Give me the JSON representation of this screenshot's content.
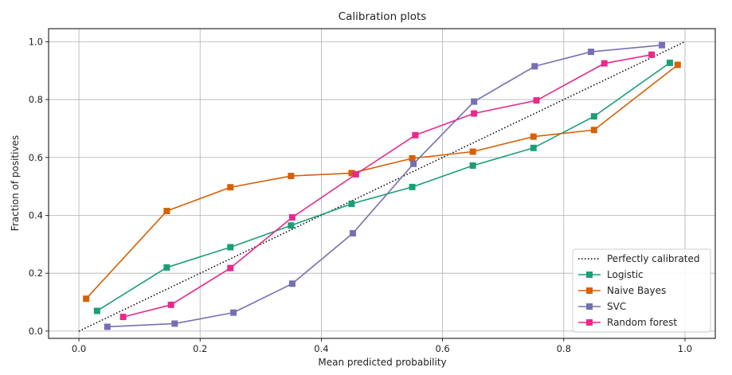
{
  "chart_data": {
    "type": "line",
    "title": "Calibration plots",
    "xlabel": "Mean predicted probability",
    "ylabel": "Fraction of positives",
    "xlim": [
      -0.05,
      1.05
    ],
    "ylim": [
      -0.025,
      1.045
    ],
    "xticks": [
      0.0,
      0.2,
      0.4,
      0.6,
      0.8,
      1.0
    ],
    "yticks": [
      0.0,
      0.2,
      0.4,
      0.6,
      0.8,
      1.0
    ],
    "xtick_labels": [
      "0.0",
      "0.2",
      "0.4",
      "0.6",
      "0.8",
      "1.0"
    ],
    "ytick_labels": [
      "0.0",
      "0.2",
      "0.4",
      "0.6",
      "0.8",
      "1.0"
    ],
    "grid": true,
    "legend_position": "bottom-right",
    "reference": {
      "name": "Perfectly calibrated",
      "x": [
        0,
        1
      ],
      "y": [
        0,
        1
      ],
      "color": "#000000",
      "style": "dotted"
    },
    "series": [
      {
        "name": "Logistic",
        "color": "#1b9e77",
        "x": [
          0.03,
          0.145,
          0.25,
          0.35,
          0.45,
          0.55,
          0.65,
          0.75,
          0.85,
          0.975
        ],
        "y": [
          0.07,
          0.22,
          0.29,
          0.365,
          0.44,
          0.498,
          0.572,
          0.633,
          0.742,
          0.927
        ]
      },
      {
        "name": "Naive Bayes",
        "color": "#d95f02",
        "x": [
          0.012,
          0.145,
          0.25,
          0.35,
          0.45,
          0.55,
          0.65,
          0.75,
          0.85,
          0.988
        ],
        "y": [
          0.112,
          0.415,
          0.497,
          0.536,
          0.546,
          0.597,
          0.62,
          0.672,
          0.695,
          0.92
        ]
      },
      {
        "name": "SVC",
        "color": "#7570b3",
        "x": [
          0.047,
          0.158,
          0.255,
          0.352,
          0.452,
          0.552,
          0.652,
          0.752,
          0.845,
          0.962
        ],
        "y": [
          0.015,
          0.026,
          0.064,
          0.164,
          0.338,
          0.578,
          0.793,
          0.915,
          0.965,
          0.988
        ]
      },
      {
        "name": "Random forest",
        "color": "#e7298a",
        "x": [
          0.073,
          0.152,
          0.25,
          0.352,
          0.457,
          0.555,
          0.652,
          0.755,
          0.867,
          0.945
        ],
        "y": [
          0.049,
          0.091,
          0.218,
          0.393,
          0.542,
          0.677,
          0.752,
          0.797,
          0.925,
          0.955
        ]
      }
    ]
  }
}
